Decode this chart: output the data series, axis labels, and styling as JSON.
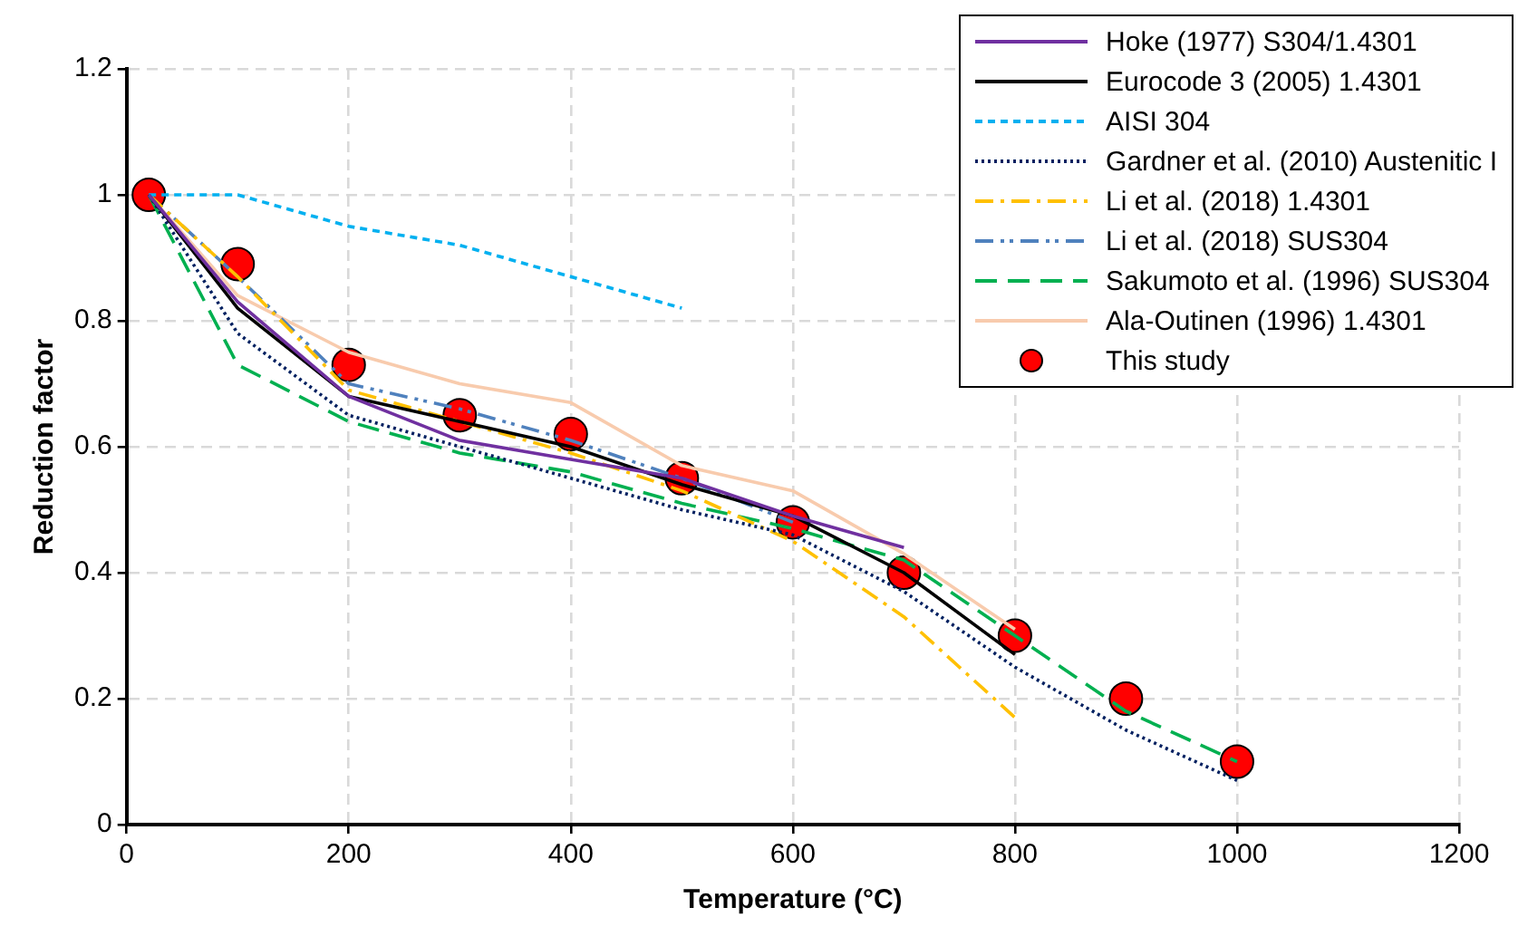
{
  "chart_data": {
    "type": "line",
    "xlabel": "Temperature (°C)",
    "ylabel": "Reduction factor",
    "xlim": [
      0,
      1200
    ],
    "xticks": [
      0,
      200,
      400,
      600,
      800,
      1000,
      1200
    ],
    "ylim": [
      0,
      1.2
    ],
    "yticks": [
      0,
      0.2,
      0.4,
      0.6,
      0.8,
      1,
      1.2
    ],
    "grid": true,
    "legend": "top right",
    "marker": "none",
    "series": [
      {
        "name": "Hoke (1977) S304/1.4301",
        "color": "#7030a0",
        "line_style": "solid",
        "x": [
          20,
          100,
          200,
          300,
          400,
          500,
          600,
          700
        ],
        "values": [
          1,
          0.83,
          0.68,
          0.61,
          0.58,
          0.55,
          0.49,
          0.44
        ]
      },
      {
        "name": "Eurocode 3 (2005) 1.4301",
        "color": "#000000",
        "line_style": "solid",
        "x": [
          20,
          100,
          200,
          300,
          400,
          500,
          600,
          700,
          800
        ],
        "values": [
          1,
          0.82,
          0.68,
          0.64,
          0.6,
          0.54,
          0.49,
          0.4,
          0.27
        ]
      },
      {
        "name": "AISI 304",
        "color": "#00b0f0",
        "line_style": "dashed",
        "x": [
          20,
          100,
          200,
          300,
          400,
          500
        ],
        "values": [
          1,
          1,
          0.95,
          0.92,
          0.87,
          0.82
        ]
      },
      {
        "name": "Gardner et al. (2010) Austenitic I",
        "color": "#002060",
        "line_style": "dotted",
        "x": [
          20,
          100,
          200,
          300,
          400,
          500,
          600,
          700,
          800,
          900,
          1000
        ],
        "values": [
          1,
          0.78,
          0.65,
          0.6,
          0.55,
          0.5,
          0.46,
          0.37,
          0.25,
          0.15,
          0.07
        ]
      },
      {
        "name": "Li et al. (2018) 1.4301",
        "color": "#ffc000",
        "line_style": "dashdot",
        "x": [
          20,
          100,
          200,
          300,
          400,
          500,
          600,
          700,
          800
        ],
        "values": [
          1,
          0.87,
          0.69,
          0.64,
          0.59,
          0.53,
          0.45,
          0.33,
          0.17
        ]
      },
      {
        "name": "Li et al. (2018) SUS304",
        "color": "#4f81bd",
        "line_style": "dashdotdot",
        "x": [
          20,
          100,
          200,
          300,
          400,
          500,
          600
        ],
        "values": [
          1,
          0.87,
          0.7,
          0.66,
          0.61,
          0.55,
          0.48
        ]
      },
      {
        "name": "Sakumoto et al. (1996) SUS304",
        "color": "#00b050",
        "line_style": "longdash",
        "x": [
          20,
          100,
          200,
          300,
          400,
          500,
          600,
          700,
          800,
          900,
          1000
        ],
        "values": [
          1,
          0.73,
          0.64,
          0.59,
          0.56,
          0.51,
          0.47,
          0.42,
          0.3,
          0.18,
          0.1
        ]
      },
      {
        "name": "Ala-Outinen (1996) 1.4301",
        "color": "#f8cbad",
        "line_style": "solid",
        "x": [
          20,
          100,
          200,
          300,
          400,
          500,
          600,
          700,
          800
        ],
        "values": [
          1,
          0.84,
          0.75,
          0.7,
          0.67,
          0.57,
          0.53,
          0.43,
          0.31
        ]
      },
      {
        "name": "This study",
        "type": "scatter",
        "marker": "circle",
        "color": "#ff0000",
        "x": [
          20,
          100,
          200,
          300,
          400,
          500,
          600,
          700,
          800,
          900,
          1000
        ],
        "values": [
          1,
          0.89,
          0.73,
          0.65,
          0.62,
          0.55,
          0.48,
          0.4,
          0.3,
          0.2,
          0.1
        ]
      }
    ]
  }
}
